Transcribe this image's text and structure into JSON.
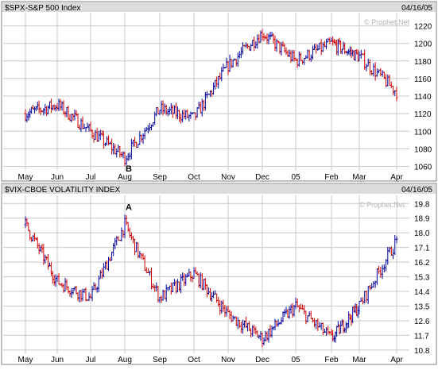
{
  "colors": {
    "up": "#000099",
    "down": "#cc0000",
    "grid": "#c8c8c8",
    "frame": "#808080",
    "header": "#dcdcdc",
    "panel_bg": "#ffffff"
  },
  "chart_data": [
    {
      "type": "ohlc-bar",
      "title": "$SPX-S&P 500 Index",
      "date": "04/16/05",
      "watermark": "© Prophet.Net",
      "x_tick_labels": [
        "May",
        "Jun",
        "Jul",
        "Aug",
        "Sep",
        "Oct",
        "Nov",
        "Dec",
        "05",
        "Feb",
        "Mar",
        "Apr"
      ],
      "y_tick_labels": [
        "1060",
        "1080",
        "1100",
        "1120",
        "1140",
        "1160",
        "1180",
        "1200",
        "1220"
      ],
      "ylim": [
        1055,
        1235
      ],
      "grid": true,
      "annotations": [
        {
          "text": "B",
          "month": "Aug",
          "value": 1060
        }
      ],
      "monthly_close": [
        {
          "month": "May",
          "close": 1120
        },
        {
          "month": "Jun",
          "close": 1130
        },
        {
          "month": "Jul",
          "close": 1100
        },
        {
          "month": "Aug",
          "close": 1070
        },
        {
          "month": "Sep",
          "close": 1125
        },
        {
          "month": "Oct",
          "close": 1115
        },
        {
          "month": "Nov",
          "close": 1175
        },
        {
          "month": "Dec",
          "close": 1212
        },
        {
          "month": "05",
          "close": 1180
        },
        {
          "month": "Feb",
          "close": 1200
        },
        {
          "month": "Mar",
          "close": 1185
        },
        {
          "month": "Apr",
          "close": 1145
        }
      ]
    },
    {
      "type": "ohlc-bar",
      "title": "$VIX-CBOE VOLATILITY INDEX",
      "date": "04/16/05",
      "watermark": "© Prophet.Net",
      "x_tick_labels": [
        "May",
        "Jun",
        "Jul",
        "Aug",
        "Sep",
        "Oct",
        "Nov",
        "Dec",
        "05",
        "Feb",
        "Mar",
        "Apr"
      ],
      "y_tick_labels": [
        "10.8",
        "11.7",
        "12.6",
        "13.5",
        "14.4",
        "15.3",
        "16.2",
        "17.1",
        "18.0",
        "18.9",
        "19.8"
      ],
      "ylim": [
        10.6,
        20.3
      ],
      "grid": true,
      "annotations": [
        {
          "text": "A",
          "month": "Aug",
          "value": 19.6
        }
      ],
      "monthly_close": [
        {
          "month": "May",
          "close": 18.5
        },
        {
          "month": "Jun",
          "close": 15.0
        },
        {
          "month": "Jul",
          "close": 14.0
        },
        {
          "month": "Aug",
          "close": 18.5
        },
        {
          "month": "Sep",
          "close": 14.0
        },
        {
          "month": "Oct",
          "close": 15.5
        },
        {
          "month": "Nov",
          "close": 13.0
        },
        {
          "month": "Dec",
          "close": 11.5
        },
        {
          "month": "05",
          "close": 13.5
        },
        {
          "month": "Feb",
          "close": 11.5
        },
        {
          "month": "Mar",
          "close": 13.5
        },
        {
          "month": "Apr",
          "close": 17.5
        }
      ]
    }
  ]
}
